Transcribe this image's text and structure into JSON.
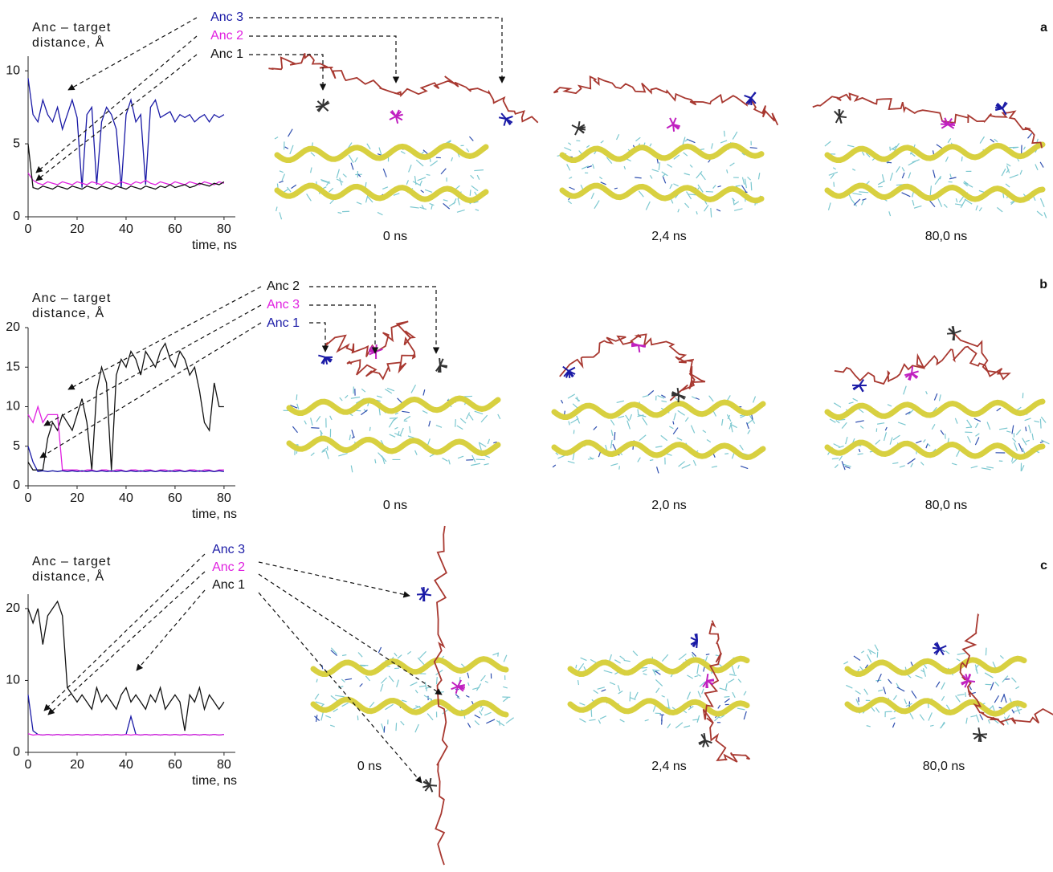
{
  "chart_data": [
    {
      "type": "line",
      "ylabel": [
        "Anc – target",
        "distance, Å"
      ],
      "xlabel": "time, ns",
      "xlim": [
        0,
        82
      ],
      "xticks": [
        0,
        20,
        40,
        60,
        80
      ],
      "ylim": [
        0,
        11
      ],
      "yticks": [
        0,
        5,
        10
      ],
      "x": [
        0,
        2,
        4,
        6,
        8,
        10,
        12,
        14,
        16,
        18,
        20,
        22,
        24,
        26,
        28,
        30,
        32,
        34,
        36,
        38,
        40,
        42,
        44,
        46,
        48,
        50,
        52,
        54,
        56,
        58,
        60,
        62,
        64,
        66,
        68,
        70,
        72,
        74,
        76,
        78,
        80
      ],
      "series": [
        {
          "name": "Anc 3",
          "color": "#1a1aa6",
          "values": [
            9.5,
            7,
            6.5,
            8,
            7,
            6.5,
            7.5,
            6,
            7,
            8,
            6.8,
            2,
            7,
            7.5,
            2.2,
            6.5,
            7.5,
            7,
            6,
            2,
            7,
            8,
            6.5,
            7,
            2.2,
            7.5,
            8,
            6.8,
            7,
            7.2,
            6.5,
            7,
            6.8,
            7,
            6.5,
            6.8,
            7,
            6.5,
            7,
            6.8,
            7
          ]
        },
        {
          "name": "Anc 2",
          "color": "#e020e0",
          "values": [
            3,
            2.5,
            2.3,
            2.2,
            2.4,
            2.3,
            2.2,
            2.4,
            2.3,
            2.2,
            2.4,
            2.3,
            2.2,
            2.4,
            2.3,
            2.2,
            2.4,
            2.3,
            2.2,
            2.4,
            2.3,
            2.2,
            2.4,
            2.3,
            2.5,
            2.3,
            2.2,
            2.4,
            2.3,
            2.2,
            2.4,
            2.3,
            2.2,
            2.4,
            2.3,
            2.2,
            2.4,
            2.3,
            2.2,
            2.4,
            2.3
          ]
        },
        {
          "name": "Anc 1",
          "color": "#111111",
          "values": [
            5,
            2,
            1.9,
            2.1,
            2,
            1.9,
            2.1,
            2,
            1.9,
            2.1,
            2,
            1.9,
            2.1,
            2,
            1.9,
            2.1,
            2,
            1.9,
            2.1,
            2,
            1.9,
            2.1,
            2,
            1.9,
            2.1,
            2,
            1.9,
            2.1,
            2,
            2.2,
            2,
            2.1,
            2.2,
            2,
            2.1,
            2.3,
            2.2,
            2.1,
            2.3,
            2.2,
            2.4
          ]
        }
      ]
    },
    {
      "type": "line",
      "ylabel": [
        "Anc – target",
        "distance, Å"
      ],
      "xlabel": "time, ns",
      "xlim": [
        0,
        82
      ],
      "xticks": [
        0,
        20,
        40,
        60,
        80
      ],
      "ylim": [
        0,
        20
      ],
      "yticks": [
        0,
        5,
        10,
        15,
        20
      ],
      "x": [
        0,
        2,
        4,
        6,
        8,
        10,
        12,
        14,
        16,
        18,
        20,
        22,
        24,
        26,
        28,
        30,
        32,
        34,
        36,
        38,
        40,
        42,
        44,
        46,
        48,
        50,
        52,
        54,
        56,
        58,
        60,
        62,
        64,
        66,
        68,
        70,
        72,
        74,
        76,
        78,
        80
      ],
      "series": [
        {
          "name": "Anc 2",
          "color": "#111111",
          "values": [
            3,
            2,
            2,
            2,
            6,
            8,
            7,
            9,
            8,
            7,
            9,
            11,
            8,
            2,
            12,
            15,
            13,
            2,
            14,
            16,
            15,
            17,
            16,
            14,
            17,
            16,
            15,
            17,
            18,
            16,
            15,
            17,
            16,
            14,
            15,
            12,
            8,
            7,
            13,
            10,
            10
          ]
        },
        {
          "name": "Anc 3",
          "color": "#e020e0",
          "values": [
            9,
            8,
            10,
            8,
            9,
            9,
            9,
            2,
            2,
            2,
            2,
            1.8,
            2,
            2,
            1.8,
            2,
            2,
            1.8,
            2,
            2,
            1.8,
            2,
            2,
            1.8,
            2,
            2,
            1.8,
            2,
            2,
            1.8,
            2,
            2,
            1.8,
            2,
            2,
            1.8,
            2,
            2,
            1.8,
            2,
            2
          ]
        },
        {
          "name": "Anc 1",
          "color": "#1a1aa6",
          "values": [
            5,
            3,
            1.8,
            1.9,
            1.8,
            1.9,
            1.8,
            1.9,
            1.8,
            1.9,
            1.8,
            1.9,
            1.8,
            1.9,
            1.8,
            1.9,
            1.8,
            1.9,
            1.8,
            1.9,
            1.8,
            1.9,
            1.8,
            1.9,
            1.8,
            1.9,
            1.8,
            1.9,
            1.8,
            1.9,
            1.8,
            1.9,
            1.8,
            1.9,
            1.8,
            1.9,
            1.8,
            1.9,
            1.8,
            1.9,
            1.8
          ]
        }
      ]
    },
    {
      "type": "line",
      "ylabel": [
        "Anc – target",
        "distance, Å"
      ],
      "xlabel": "time, ns",
      "xlim": [
        0,
        82
      ],
      "xticks": [
        0,
        20,
        40,
        60,
        80
      ],
      "ylim": [
        0,
        22
      ],
      "yticks": [
        0,
        10,
        20
      ],
      "x": [
        0,
        2,
        4,
        6,
        8,
        10,
        12,
        14,
        16,
        18,
        20,
        22,
        24,
        26,
        28,
        30,
        32,
        34,
        36,
        38,
        40,
        42,
        44,
        46,
        48,
        50,
        52,
        54,
        56,
        58,
        60,
        62,
        64,
        66,
        68,
        70,
        72,
        74,
        76,
        78,
        80
      ],
      "series": [
        {
          "name": "Anc 3",
          "color": "#1a1aa6",
          "values": [
            8,
            3,
            2.5,
            2.4,
            2.5,
            2.4,
            2.5,
            2.4,
            2.5,
            2.4,
            2.5,
            2.4,
            2.5,
            2.4,
            2.5,
            2.4,
            2.5,
            2.4,
            2.5,
            2.4,
            2.5,
            5,
            2.5,
            2.4,
            2.5,
            2.4,
            2.5,
            2.4,
            2.5,
            2.4,
            2.5,
            2.4,
            2.5,
            2.4,
            2.5,
            2.4,
            2.5,
            2.4,
            2.5,
            2.4,
            2.5
          ]
        },
        {
          "name": "Anc 2",
          "color": "#e020e0",
          "values": [
            2.6,
            2.4,
            2.5,
            2.4,
            2.5,
            2.4,
            2.5,
            2.4,
            2.5,
            2.4,
            2.5,
            2.4,
            2.5,
            2.4,
            2.5,
            2.4,
            2.5,
            2.4,
            2.5,
            2.4,
            2.5,
            2.4,
            2.5,
            2.4,
            2.5,
            2.4,
            2.5,
            2.4,
            2.5,
            2.4,
            2.5,
            2.4,
            2.5,
            2.4,
            2.5,
            2.4,
            2.5,
            2.4,
            2.5,
            2.4,
            2.5
          ]
        },
        {
          "name": "Anc 1",
          "color": "#111111",
          "values": [
            20,
            18,
            20,
            15,
            19,
            20,
            21,
            19,
            9,
            8,
            7,
            8,
            7,
            6,
            9,
            7,
            8,
            7,
            6,
            8,
            9,
            7,
            8,
            7,
            6,
            8,
            7,
            9,
            6,
            7,
            8,
            7,
            3,
            8,
            7,
            9,
            6,
            8,
            7,
            6,
            7
          ]
        }
      ]
    }
  ],
  "panels": [
    {
      "label": "a",
      "snapshots": [
        "0 ns",
        "2,4 ns",
        "80,0 ns"
      ]
    },
    {
      "label": "b",
      "snapshots": [
        "0 ns",
        "2,0 ns",
        "80,0 ns"
      ]
    },
    {
      "label": "c",
      "snapshots": [
        "0 ns",
        "2,4 ns",
        "80,0 ns"
      ]
    }
  ]
}
